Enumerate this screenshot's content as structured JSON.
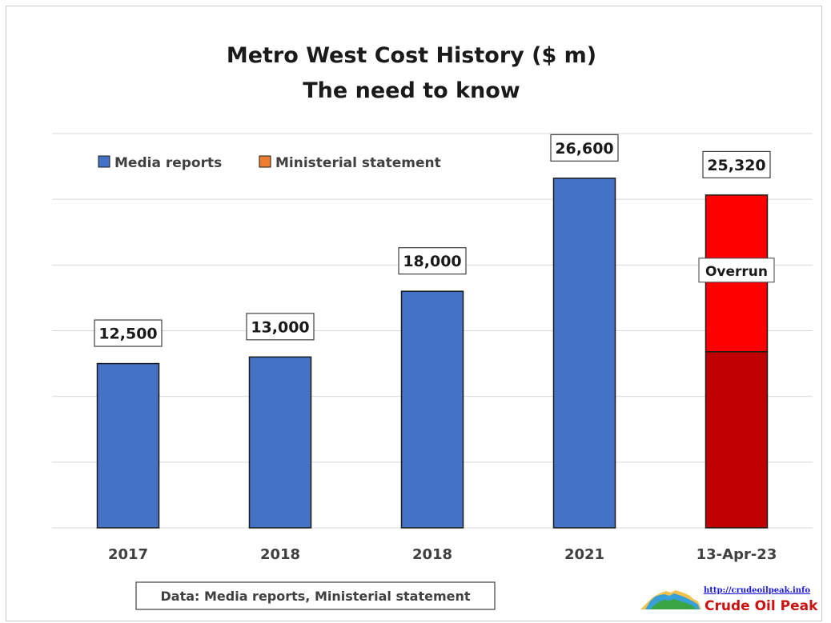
{
  "chart_data": {
    "type": "bar",
    "title": [
      "Metro West Cost History ($ m)",
      "The need to know"
    ],
    "categories": [
      "2017",
      "2018",
      "2018",
      "2021",
      "13-Apr-23"
    ],
    "series": [
      {
        "name": "Media reports",
        "color": "#4472c4",
        "values": [
          12500,
          13000,
          18000,
          26600,
          null
        ]
      },
      {
        "name": "Ministerial statement",
        "color": "#ed7d31",
        "values": [
          null,
          null,
          null,
          null,
          25320
        ]
      }
    ],
    "value_labels": [
      "12,500",
      "13,000",
      "18,000",
      "26,600",
      "25,320"
    ],
    "stacked_final_bar": {
      "category": "13-Apr-23",
      "base_value": 13400,
      "base_color": "#c00000",
      "top_color": "#ff0000",
      "annotation": "Overrun"
    },
    "ylim": [
      0,
      30000
    ],
    "y_gridline_step": 5000,
    "y_tick_labels_shown": false,
    "grid": true,
    "legend_position": "top-left",
    "source_note": "Data: Media reports, Ministerial statement"
  },
  "branding": {
    "url": "http://crudeoilpeak.info",
    "name": "Crude Oil Peak"
  }
}
